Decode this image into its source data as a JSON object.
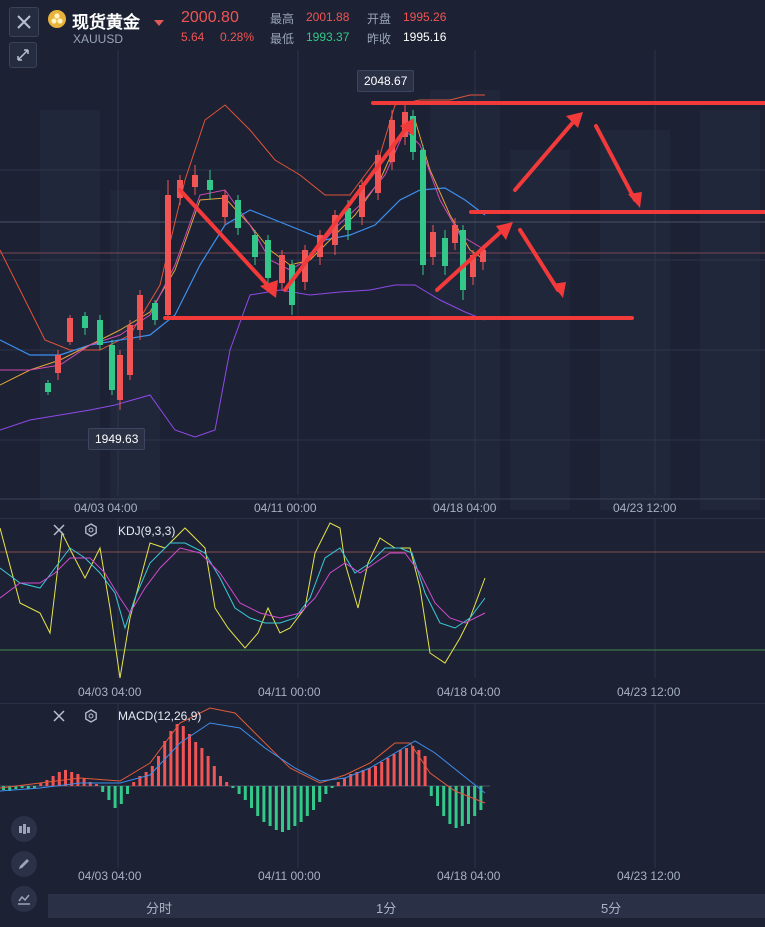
{
  "header": {
    "close_icon": "close-icon",
    "collapse_icon": "collapse-icon",
    "title": "现货黄金",
    "symbol": "XAUUSD",
    "price": "2000.80",
    "change": "5.64",
    "change_pct": "0.28%",
    "high_label": "最高",
    "high": "2001.88",
    "low_label": "最低",
    "low": "1993.37",
    "open_label": "开盘",
    "open": "1995.26",
    "prev_close_label": "昨收",
    "prev_close": "1995.16"
  },
  "main_chart": {
    "high_marker": "2048.67",
    "low_marker": "1949.63",
    "x_ticks": [
      "04/03 04:00",
      "04/11 00:00",
      "04/18 04:00",
      "04/23 12:00"
    ]
  },
  "kdj": {
    "label": "KDJ(9,3,3)",
    "x_ticks": [
      "04/03 04:00",
      "04/11 00:00",
      "04/18 04:00",
      "04/23 12:00"
    ]
  },
  "macd": {
    "label": "MACD(12,26,9)",
    "x_ticks": [
      "04/03 04:00",
      "04/11 00:00",
      "04/18 04:00",
      "04/23 12:00"
    ]
  },
  "tabs": [
    "分时",
    "1分",
    "5分"
  ],
  "colors": {
    "up": "#f05454",
    "down": "#33c78a",
    "annotation": "#f23a3a",
    "background": "#1c2233"
  }
}
